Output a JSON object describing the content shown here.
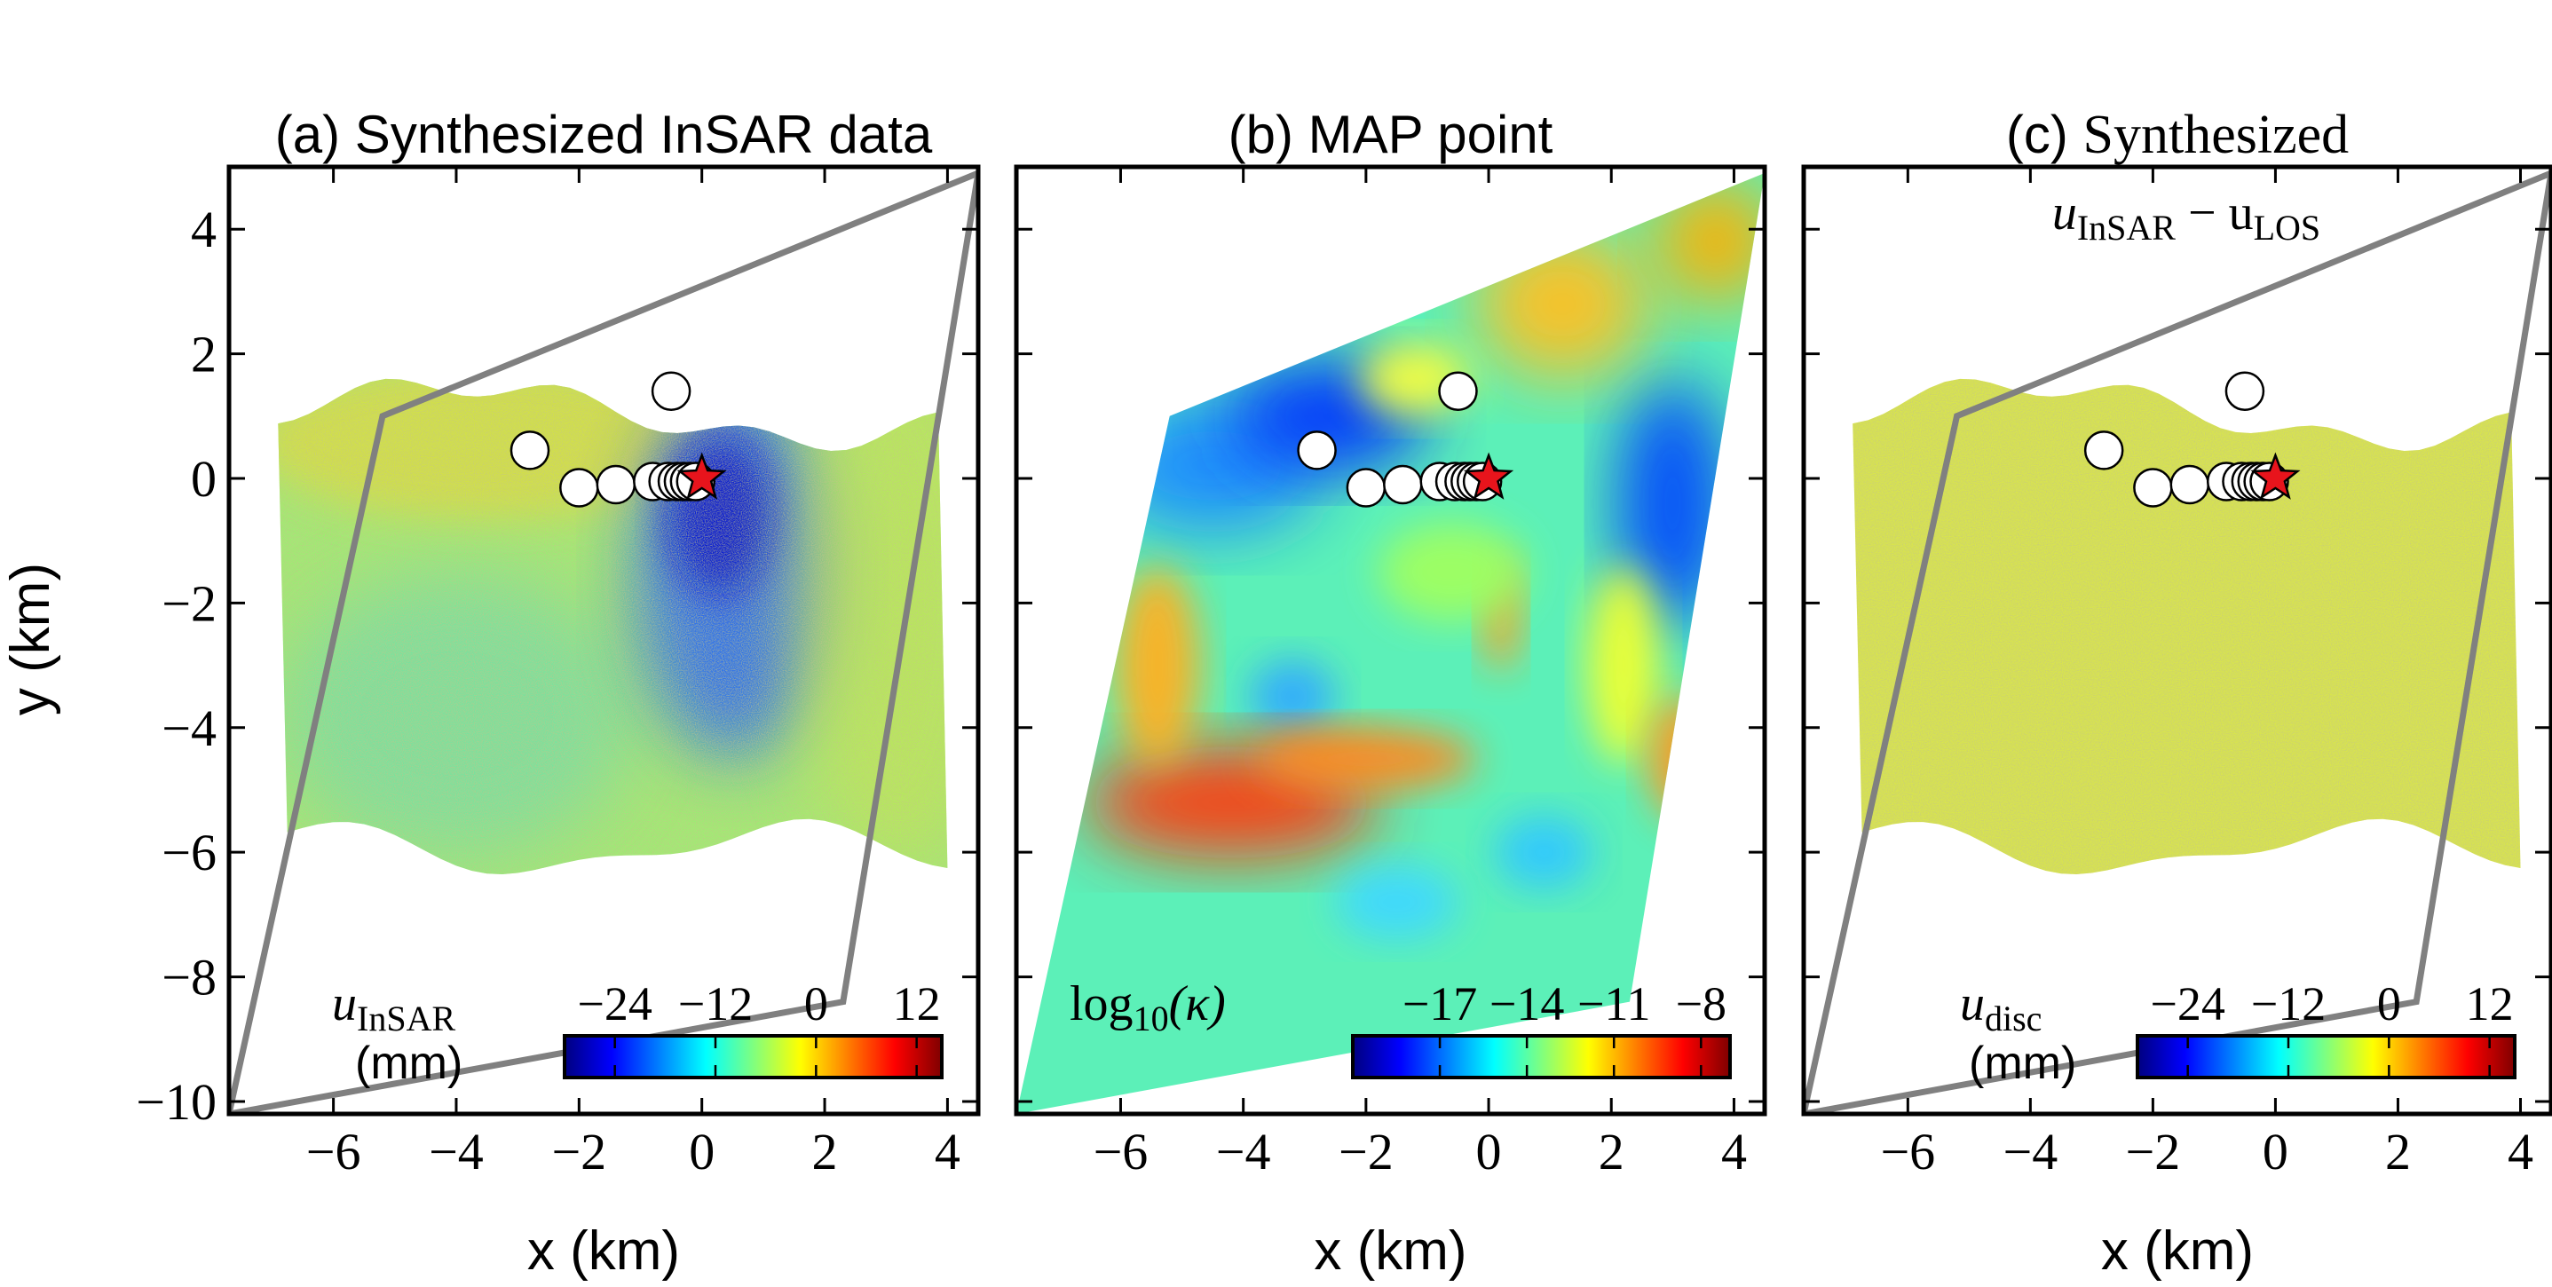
{
  "chart_data": [
    {
      "type": "heatmap",
      "title": "(a) Synthesized InSAR data",
      "xlabel": "x (km)",
      "ylabel": "y (km)",
      "xlim": [
        -7.7,
        4.5
      ],
      "ylim": [
        -10.2,
        5.0
      ],
      "xticks": [
        "−6",
        "−4",
        "−2",
        "0",
        "2",
        "4"
      ],
      "xtick_values": [
        -6,
        -4,
        -2,
        0,
        2,
        4
      ],
      "yticks": [
        "4",
        "2",
        "0",
        "−2",
        "−4",
        "−6",
        "−8",
        "−10"
      ],
      "ytick_values": [
        4,
        2,
        0,
        -2,
        -4,
        -6,
        -8,
        -10
      ],
      "colorbar": {
        "label": "u",
        "label_sub": "InSAR",
        "unit": "(mm)",
        "ticks": [
          "−24",
          "−12",
          "0",
          "12"
        ],
        "range": [
          -30,
          15
        ]
      },
      "domain_outline_km": [
        [
          -5.2,
          1.0
        ],
        [
          4.5,
          4.9
        ],
        [
          2.3,
          -8.4
        ],
        [
          -7.7,
          -10.2
        ]
      ],
      "stations_km": [
        [
          -0.5,
          1.4
        ],
        [
          -2.8,
          0.45
        ],
        [
          -2.0,
          -0.15
        ],
        [
          -1.4,
          -0.1
        ],
        [
          -0.8,
          -0.05
        ],
        [
          -0.55,
          -0.05
        ],
        [
          -0.4,
          -0.05
        ],
        [
          -0.3,
          -0.05
        ],
        [
          -0.2,
          -0.05
        ],
        [
          -0.1,
          -0.05
        ]
      ],
      "epicenter_km": [
        0.0,
        0.0
      ]
    },
    {
      "type": "heatmap",
      "title": "(b) MAP point",
      "xlabel": "x (km)",
      "ylabel": "",
      "xlim": [
        -7.7,
        4.5
      ],
      "ylim": [
        -10.2,
        5.0
      ],
      "xticks": [
        "−6",
        "−4",
        "−2",
        "0",
        "2",
        "4"
      ],
      "xtick_values": [
        -6,
        -4,
        -2,
        0,
        2,
        4
      ],
      "colorbar": {
        "label": "log",
        "label_sub": "10",
        "label_tail": "(κ)",
        "ticks": [
          "−17",
          "−14",
          "−11",
          "−8"
        ],
        "range": [
          -20,
          -7
        ]
      },
      "stations_km": [
        [
          -0.5,
          1.4
        ],
        [
          -2.8,
          0.45
        ],
        [
          -2.0,
          -0.15
        ],
        [
          -1.4,
          -0.1
        ],
        [
          -0.8,
          -0.05
        ],
        [
          -0.55,
          -0.05
        ],
        [
          -0.4,
          -0.05
        ],
        [
          -0.3,
          -0.05
        ],
        [
          -0.2,
          -0.05
        ],
        [
          -0.1,
          -0.05
        ]
      ],
      "epicenter_km": [
        0.0,
        0.0
      ]
    },
    {
      "type": "heatmap",
      "title": "(c) Synthesized",
      "title_line2": "u",
      "title_line2_sub1": "InSAR",
      "title_line2_mid": " − u",
      "title_line2_sub2": "LOS",
      "xlabel": "x (km)",
      "ylabel": "",
      "xlim": [
        -7.7,
        4.5
      ],
      "ylim": [
        -10.2,
        5.0
      ],
      "xticks": [
        "−6",
        "−4",
        "−2",
        "0",
        "2",
        "4"
      ],
      "xtick_values": [
        -6,
        -4,
        -2,
        0,
        2,
        4
      ],
      "colorbar": {
        "label": "u",
        "label_sub": "disc",
        "unit": "(mm)",
        "ticks": [
          "−24",
          "−12",
          "0",
          "12"
        ],
        "range": [
          -30,
          15
        ]
      },
      "domain_outline_km": [
        [
          -5.2,
          1.0
        ],
        [
          4.5,
          4.9
        ],
        [
          2.3,
          -8.4
        ],
        [
          -7.7,
          -10.2
        ]
      ],
      "stations_km": [
        [
          -0.5,
          1.4
        ],
        [
          -2.8,
          0.45
        ],
        [
          -2.0,
          -0.15
        ],
        [
          -1.4,
          -0.1
        ],
        [
          -0.8,
          -0.05
        ],
        [
          -0.55,
          -0.05
        ],
        [
          -0.4,
          -0.05
        ],
        [
          -0.3,
          -0.05
        ],
        [
          -0.2,
          -0.05
        ],
        [
          -0.1,
          -0.05
        ]
      ],
      "epicenter_km": [
        0.0,
        0.0
      ]
    }
  ],
  "colors": {
    "outline": "#808080",
    "star": "#e8141c",
    "station_fill": "#ffffff",
    "jet_stops": [
      "#00007f",
      "#0000ff",
      "#007fff",
      "#00ffff",
      "#7fff7f",
      "#ffff00",
      "#ff7f00",
      "#ff0000",
      "#7f0000"
    ]
  }
}
